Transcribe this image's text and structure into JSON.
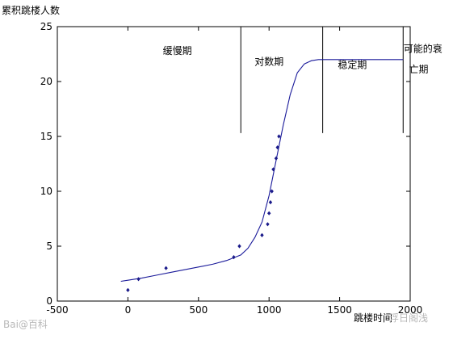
{
  "chart_data": {
    "type": "scatter",
    "ylabel": "累积跳楼人数",
    "xlabel": "跳楼时间",
    "xlim": [
      -500,
      2000
    ],
    "ylim": [
      0,
      25
    ],
    "xticks": [
      -500,
      0,
      500,
      1000,
      1500,
      2000
    ],
    "yticks": [
      0,
      5,
      10,
      15,
      20,
      25
    ],
    "grid": false,
    "points": {
      "x": [
        0,
        75,
        270,
        750,
        790,
        950,
        990,
        1000,
        1010,
        1020,
        1030,
        1050,
        1060,
        1070
      ],
      "y": [
        1,
        2,
        3,
        4,
        5,
        6,
        7,
        8,
        9,
        10,
        12,
        13,
        14,
        15
      ]
    },
    "curve": {
      "x": [
        -50,
        0,
        100,
        200,
        300,
        400,
        500,
        600,
        700,
        800,
        850,
        900,
        950,
        1000,
        1050,
        1100,
        1150,
        1200,
        1250,
        1300,
        1350,
        1400,
        1500,
        1600,
        1700,
        1800,
        1900,
        1950
      ],
      "y": [
        1.8,
        1.9,
        2.1,
        2.35,
        2.6,
        2.85,
        3.1,
        3.35,
        3.7,
        4.2,
        4.8,
        5.8,
        7.2,
        9.6,
        12.8,
        16.0,
        18.8,
        20.8,
        21.6,
        21.9,
        22.0,
        22.0,
        22.0,
        22.0,
        22.0,
        22.0,
        22.0,
        22.0
      ]
    },
    "phase_dividers_x": [
      800,
      1380,
      1950
    ],
    "annotations": [
      {
        "text": "缓慢期",
        "x": 350,
        "y": 22.5
      },
      {
        "text": "对数期",
        "x": 1000,
        "y": 21.5
      },
      {
        "text": "稳定期",
        "x": 1590,
        "y": 21.2
      },
      {
        "text": "可能的衰",
        "x": 2090,
        "y": 22.7
      },
      {
        "text": "亡期",
        "x": 2060,
        "y": 20.8
      }
    ]
  },
  "watermarks": {
    "left": "Bai@百科",
    "right": "浮日阁浅"
  }
}
